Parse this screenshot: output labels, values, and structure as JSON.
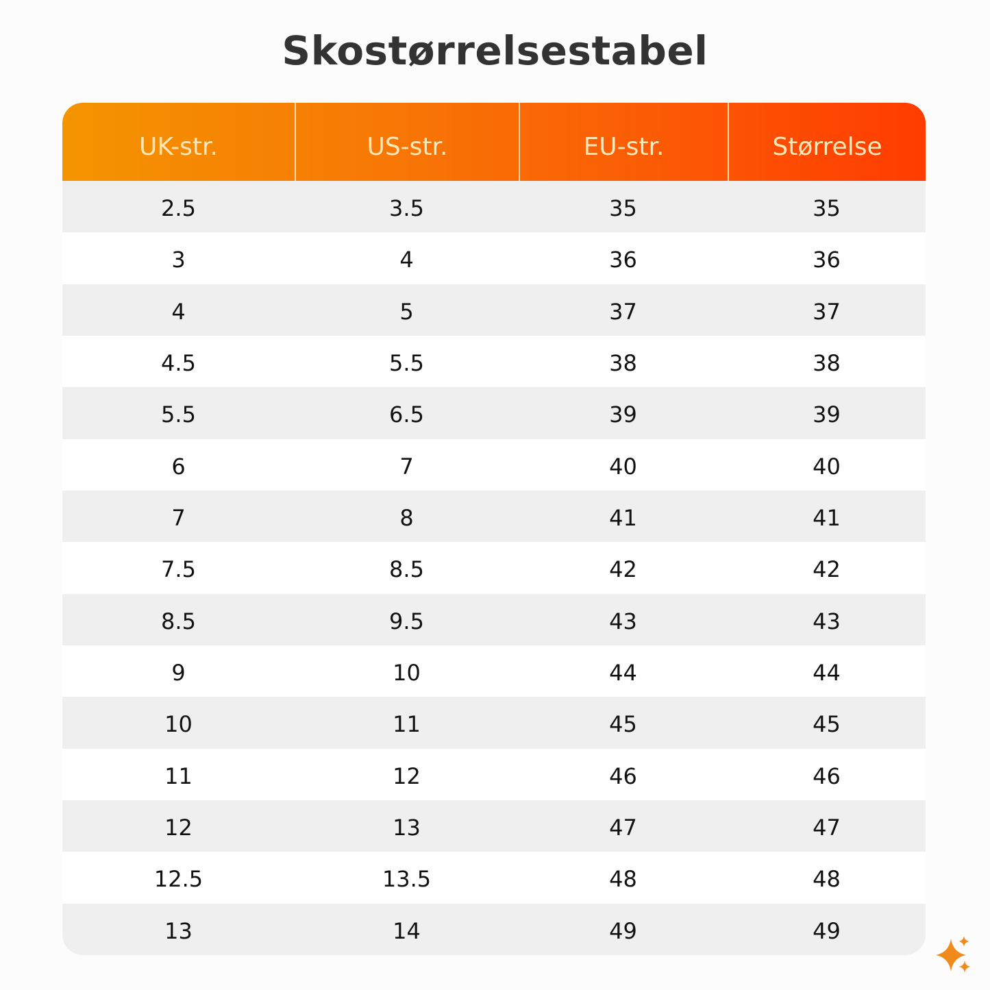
{
  "header": {
    "title": "Skostørrelsestabel"
  },
  "table": {
    "columns": [
      "UK-str.",
      "US-str.",
      "EU-str.",
      "Størrelse"
    ],
    "rows": [
      [
        "2.5",
        "3.5",
        "35",
        "35"
      ],
      [
        "3",
        "4",
        "36",
        "36"
      ],
      [
        "4",
        "5",
        "37",
        "37"
      ],
      [
        "4.5",
        "5.5",
        "38",
        "38"
      ],
      [
        "5.5",
        "6.5",
        "39",
        "39"
      ],
      [
        "6",
        "7",
        "40",
        "40"
      ],
      [
        "7",
        "8",
        "41",
        "41"
      ],
      [
        "7.5",
        "8.5",
        "42",
        "42"
      ],
      [
        "8.5",
        "9.5",
        "43",
        "43"
      ],
      [
        "9",
        "10",
        "44",
        "44"
      ],
      [
        "10",
        "11",
        "45",
        "45"
      ],
      [
        "11",
        "12",
        "46",
        "46"
      ],
      [
        "12",
        "13",
        "47",
        "47"
      ],
      [
        "12.5",
        "13.5",
        "48",
        "48"
      ],
      [
        "13",
        "14",
        "49",
        "49"
      ]
    ]
  }
}
